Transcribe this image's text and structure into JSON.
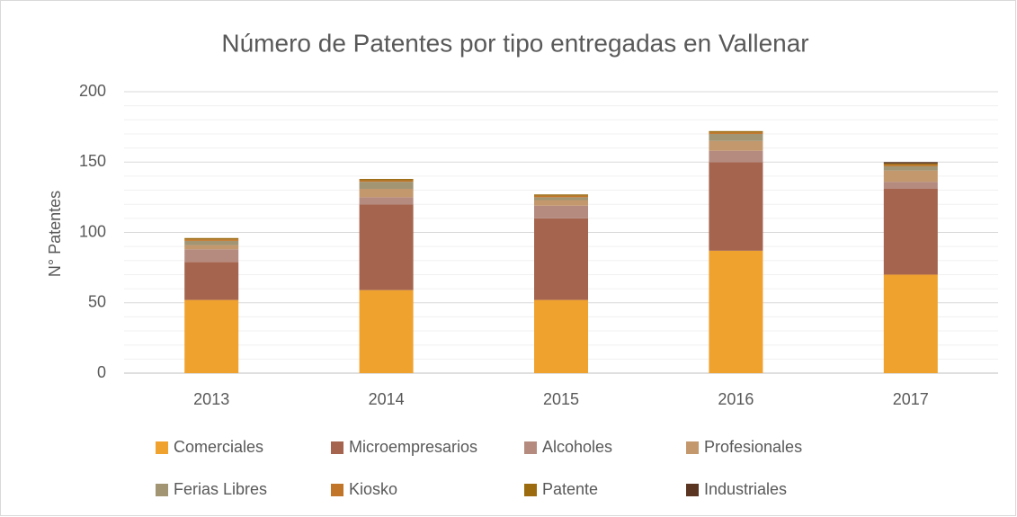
{
  "chart_data": {
    "type": "stacked_bar",
    "title": "Número de Patentes por tipo entregadas en Vallenar",
    "y_label": "N° Patentes",
    "categories": [
      "2013",
      "2014",
      "2015",
      "2016",
      "2017"
    ],
    "series": [
      {
        "name": "Comerciales",
        "color": "#f0a22e",
        "values": [
          52,
          59,
          52,
          87,
          70
        ]
      },
      {
        "name": "Microempresarios",
        "color": "#a5644e",
        "values": [
          27,
          61,
          58,
          63,
          61
        ]
      },
      {
        "name": "Alcoholes",
        "color": "#b58b80",
        "values": [
          9,
          5,
          9,
          8,
          5
        ]
      },
      {
        "name": "Profesionales",
        "color": "#c3986d",
        "values": [
          3,
          6,
          4,
          7,
          8
        ]
      },
      {
        "name": "Ferias Libres",
        "color": "#a19574",
        "values": [
          3,
          5,
          2,
          5,
          3
        ]
      },
      {
        "name": "Kiosko",
        "color": "#c17529",
        "values": [
          1,
          1,
          1,
          1,
          1
        ]
      },
      {
        "name": "Patente",
        "color": "#9c6a0f",
        "values": [
          1,
          1,
          1,
          1,
          1
        ]
      },
      {
        "name": "Industriales",
        "color": "#5a3521",
        "values": [
          0,
          0,
          0,
          0,
          1
        ]
      }
    ],
    "ylim": [
      0,
      200
    ],
    "yticks": [
      0,
      50,
      100,
      150,
      200
    ],
    "yticks_minor": [
      10,
      20,
      30,
      40,
      60,
      70,
      80,
      90,
      110,
      120,
      130,
      140,
      160,
      170,
      180,
      190
    ],
    "grid": true,
    "legend": "bottom"
  }
}
